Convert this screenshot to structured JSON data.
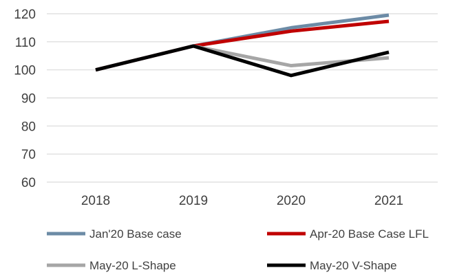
{
  "chart_data": {
    "type": "line",
    "title": "",
    "xlabel": "",
    "ylabel": "",
    "categories": [
      "2018",
      "2019",
      "2020",
      "2021"
    ],
    "ylim": [
      60,
      120
    ],
    "yticks": [
      60,
      70,
      80,
      90,
      100,
      110,
      120
    ],
    "grid": true,
    "legend_position": "bottom",
    "series": [
      {
        "name": "Jan'20 Base case",
        "color": "#6C8BA6",
        "values": [
          100,
          108.5,
          115,
          119.5
        ]
      },
      {
        "name": "Apr-20 Base Case LFL",
        "color": "#C00000",
        "values": [
          100,
          108.5,
          113.8,
          117.3
        ]
      },
      {
        "name": "May-20 L-Shape",
        "color": "#A6A6A6",
        "values": [
          100,
          108.5,
          101.5,
          104.3
        ]
      },
      {
        "name": "May-20 V-Shape",
        "color": "#000000",
        "values": [
          100,
          108.5,
          98,
          106.3
        ]
      }
    ]
  }
}
